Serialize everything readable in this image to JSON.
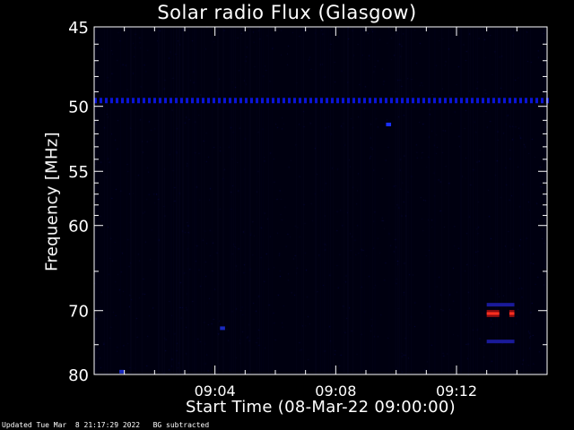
{
  "chart_data": {
    "type": "heatmap",
    "title": "Solar radio Flux (Glasgow)",
    "xlabel": "Start Time (08-Mar-22 09:00:00)",
    "ylabel": "Frequency [MHz]",
    "xlim": [
      "09:00:00",
      "09:15:00"
    ],
    "ylim": [
      45,
      80
    ],
    "y_ticks": [
      "45",
      "50",
      "55",
      "60",
      "70",
      "80"
    ],
    "y_tick_values": [
      45,
      50,
      55,
      60,
      70,
      80
    ],
    "x_ticks": [
      "09:04",
      "09:08",
      "09:12"
    ],
    "x_tick_values": [
      "09:04:00",
      "09:08:00",
      "09:12:00"
    ],
    "background_color": "#000010",
    "features": [
      {
        "x_start": "09:00:00",
        "x_end": "09:15:00",
        "y": 49.6,
        "intensity": "medium",
        "color": "#0a14d8",
        "pattern": "dashed"
      },
      {
        "x_start": "09:13:00",
        "x_end": "09:13:25",
        "y": 70.4,
        "intensity": "high",
        "color": "#ff3020"
      },
      {
        "x_start": "09:13:45",
        "x_end": "09:13:55",
        "y": 70.4,
        "intensity": "high",
        "color": "#ff3020"
      },
      {
        "x_start": "09:13:00",
        "x_end": "09:13:55",
        "y": 69.2,
        "intensity": "low",
        "color": "#1a1a9a"
      },
      {
        "x_start": "09:13:00",
        "x_end": "09:13:55",
        "y": 74.5,
        "intensity": "low",
        "color": "#1a1a9a"
      },
      {
        "x_start": "09:09:40",
        "x_end": "09:09:50",
        "y": 51.3,
        "intensity": "medium",
        "color": "#1a30ff"
      },
      {
        "x_start": "09:00:50",
        "x_end": "09:01:00",
        "y": 79.5,
        "intensity": "low",
        "color": "#1a2ac0"
      },
      {
        "x_start": "09:04:10",
        "x_end": "09:04:20",
        "y": 72.5,
        "intensity": "low",
        "color": "#1a2ac0"
      }
    ]
  },
  "footer": {
    "text": "Updated Tue Mar  8 21:17:29 2022   BG subtracted"
  }
}
